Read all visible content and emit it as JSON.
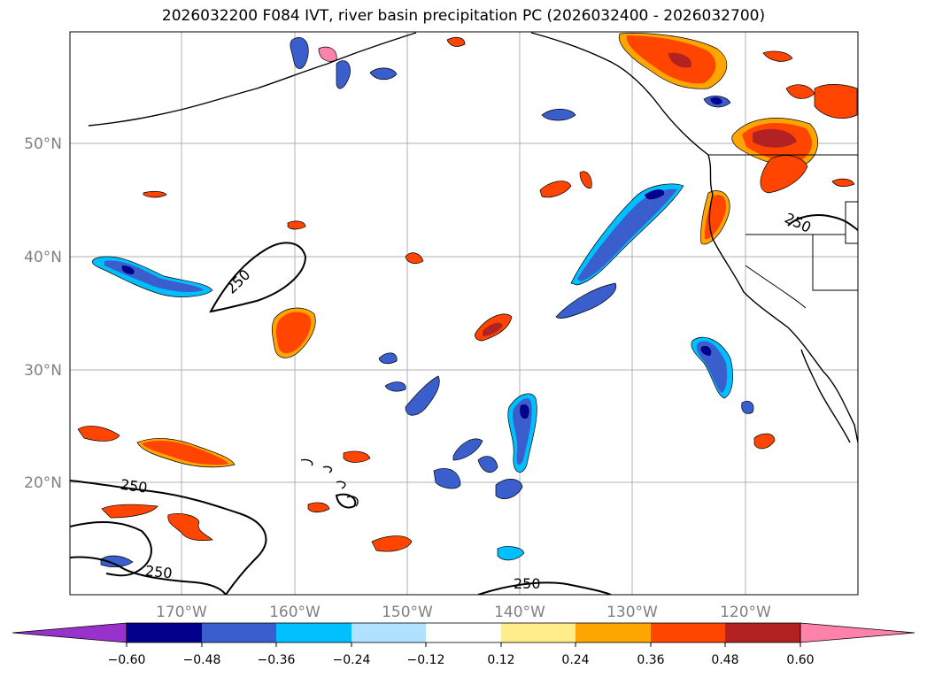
{
  "title": "2026032200 F084 IVT, river basin precipitation PC (2026032400 - 2026032700)",
  "map": {
    "lat_ticks": [
      "50°N",
      "40°N",
      "30°N",
      "20°N"
    ],
    "lon_ticks": [
      "170°W",
      "160°W",
      "150°W",
      "140°W",
      "130°W",
      "120°W"
    ],
    "ivt_contour_label": "250"
  },
  "colorbar": {
    "ticks": [
      "−0.60",
      "−0.48",
      "−0.36",
      "−0.24",
      "−0.12",
      "0.12",
      "0.24",
      "0.36",
      "0.48",
      "0.60"
    ],
    "colors": [
      "#9932CC",
      "#00008B",
      "#3A5FCD",
      "#00BFFF",
      "#B0E2FF",
      "#FFFFFF",
      "#FFEC8B",
      "#FFA500",
      "#FF4500",
      "#B22222",
      "#FF82AB"
    ]
  }
}
